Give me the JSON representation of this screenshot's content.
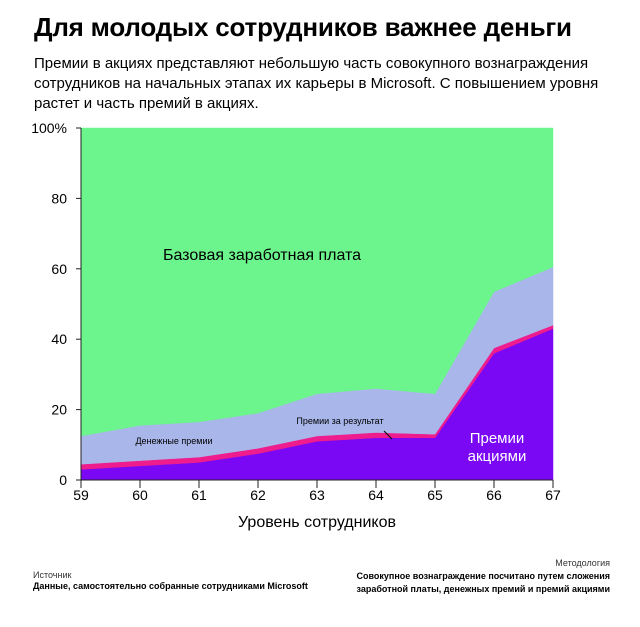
{
  "title": "Для молодых сотрудников важнее деньги",
  "subtitle": "Премии в акциях представляют небольшую часть совокупного вознаграждения сотрудников на начальных этапах их карьеры в Microsoft. С повышением уровня растет и часть премий в акциях.",
  "footer": {
    "source_label": "Источник",
    "source_text": "Данные, самостоятельно собранные сотрудниками Microsoft",
    "method_label": "Методология",
    "method_text": "Совокупное вознаграждение посчитано путем сложения заработной платы, денежных премий и премий акциями"
  },
  "chart_data": {
    "type": "area",
    "stacked": true,
    "normalized": true,
    "xlabel": "Уровень сотрудников",
    "x": [
      59,
      60,
      61,
      62,
      63,
      64,
      65,
      66,
      67
    ],
    "ylim": [
      0,
      100
    ],
    "yticks": [
      0,
      20,
      40,
      60,
      80,
      100
    ],
    "ytick_labels": [
      "0",
      "20",
      "40",
      "60",
      "80",
      "100%"
    ],
    "grid": false,
    "series": [
      {
        "name": "Премии акциями",
        "color": "#7a08f5",
        "values": [
          3,
          4,
          5,
          7.5,
          11,
          12,
          12,
          36,
          43
        ]
      },
      {
        "name": "Премии за результат",
        "color": "#ee1c8c",
        "values": [
          1.5,
          1.5,
          1.5,
          1.5,
          1.5,
          1.5,
          1,
          1.5,
          1
        ]
      },
      {
        "name": "Денежные премии",
        "color": "#a8b6ea",
        "values": [
          8,
          10,
          10,
          10,
          12,
          12.5,
          11.5,
          16,
          16.5
        ]
      },
      {
        "name": "Базовая заработная плата",
        "color": "#6cf58c",
        "values": [
          87.5,
          84.5,
          83.5,
          81,
          75.5,
          74,
          75.5,
          46.5,
          39.5
        ]
      }
    ],
    "annotations": {
      "base": "Базовая заработная плата",
      "cash": "Денежные премии",
      "perf": "Премии за результат",
      "stock_line1": "Премии",
      "stock_line2": "акциями"
    }
  }
}
